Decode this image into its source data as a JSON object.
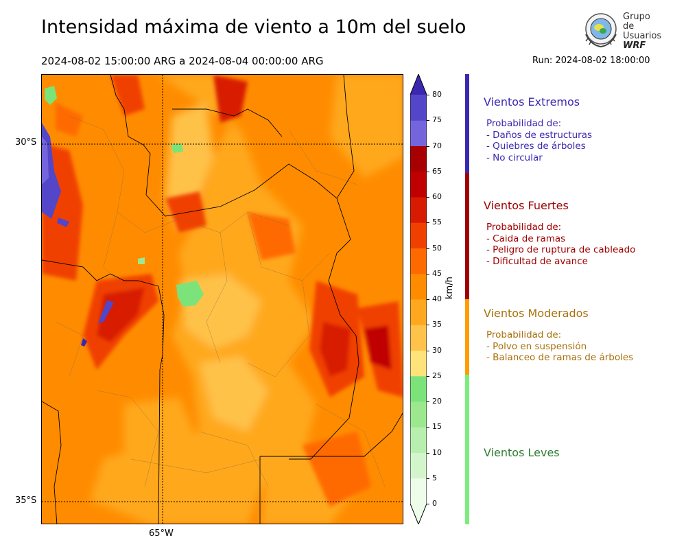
{
  "header": {
    "title": "Intensidad máxima de viento a 10m del suelo",
    "date_range": "2024-08-02 15:00:00 ARG  a  2024-08-04 00:00:00 ARG",
    "run": "Run: 2024-08-02 18:00:00"
  },
  "logo": {
    "line1": "Grupo de",
    "line2": "Usuarios",
    "line3": "WRF"
  },
  "map": {
    "lat_labels": [
      "30°S",
      "35°S"
    ],
    "lon_labels": [
      "65°W"
    ]
  },
  "colorbar": {
    "unit": "km/h",
    "ticks": [
      "0",
      "5",
      "10",
      "15",
      "20",
      "25",
      "30",
      "35",
      "40",
      "45",
      "50",
      "55",
      "60",
      "65",
      "70",
      "75",
      "80"
    ],
    "colors": [
      "#eefcea",
      "#d3f5cc",
      "#b8efae",
      "#9ce88f",
      "#7ce37a",
      "#ffe37a",
      "#ffc24a",
      "#ffa81f",
      "#ff8c00",
      "#ff6a00",
      "#f04000",
      "#d81a00",
      "#c00000",
      "#a80000",
      "#7565dc",
      "#5346c9",
      "#3a28b0"
    ]
  },
  "categories": [
    {
      "title": "Vientos Extremos",
      "color": "#3a28b0",
      "lines": [
        "Probabilidad de:",
        "- Daños de estructuras",
        "- Quiebres de árboles",
        "- No circular"
      ]
    },
    {
      "title": "Vientos Fuertes",
      "color": "#a00000",
      "lines": [
        "Probabilidad de:",
        "- Caida de ramas",
        "- Peligro de ruptura de cableado",
        "- Dificultad de avance"
      ]
    },
    {
      "title": "Vientos Moderados",
      "color": "#a8700a",
      "bar_color": "#ff9d00",
      "lines": [
        "Probabilidad de:",
        "- Polvo en suspensión",
        "- Balanceo de ramas de árboles"
      ]
    },
    {
      "title": "Vientos Leves",
      "color": "#2e7d32",
      "bar_color": "#7ced7c",
      "lines": []
    }
  ]
}
